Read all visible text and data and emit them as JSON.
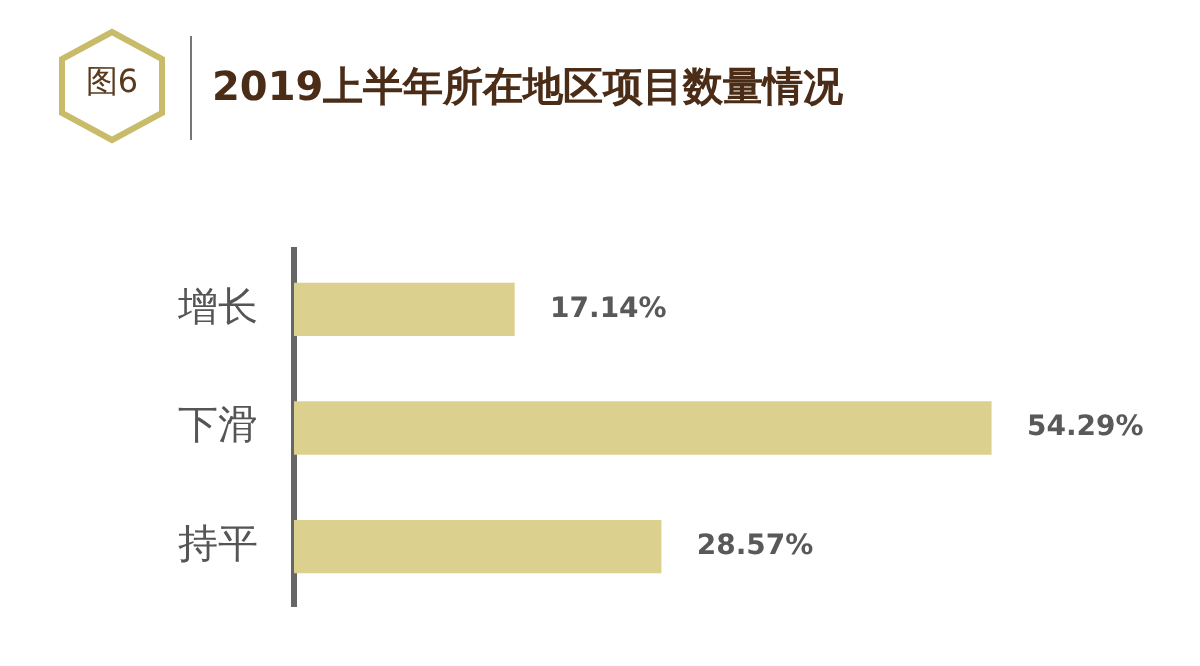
{
  "chart_data": {
    "type": "bar",
    "orientation": "horizontal",
    "title": "2019上半年所在地区项目数量情况",
    "annotations": [
      "图6"
    ],
    "categories": [
      "增长",
      "下滑",
      "持平"
    ],
    "values": [
      17.14,
      54.29,
      28.57
    ],
    "value_labels": [
      "17.14%",
      "54.29%",
      "28.57%"
    ],
    "color": "#dcd08f",
    "legend": false
  }
}
